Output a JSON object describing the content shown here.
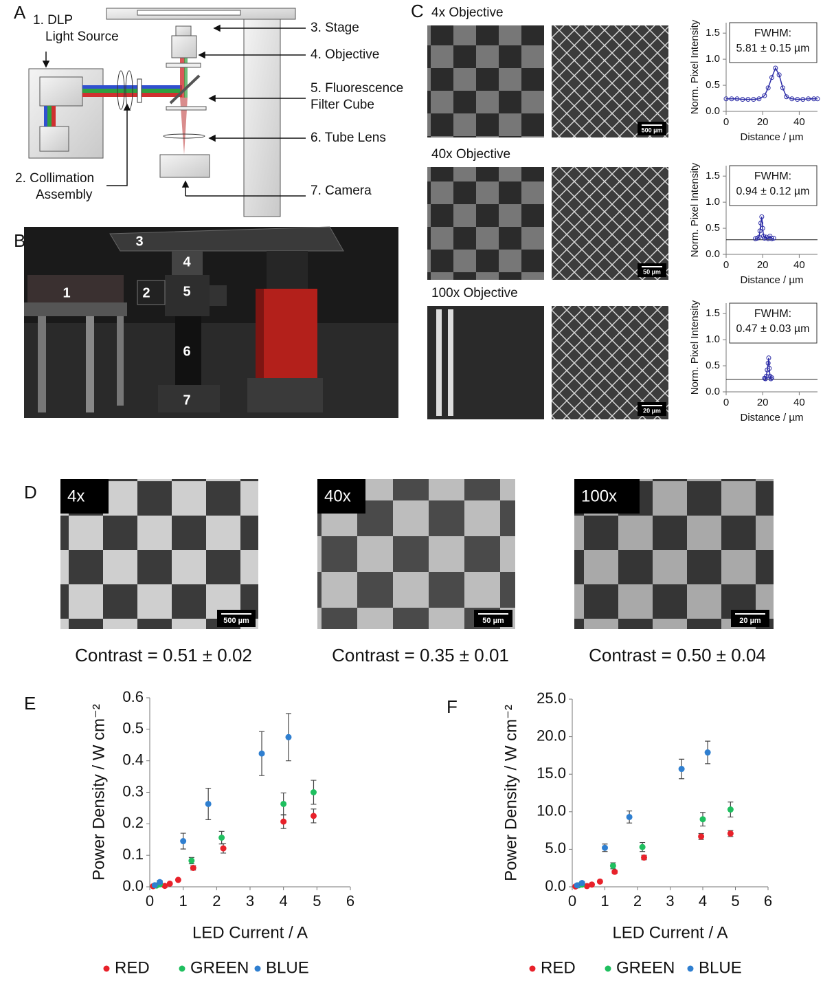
{
  "panel_labels": [
    "A",
    "B",
    "C",
    "D",
    "E",
    "F"
  ],
  "diagram": {
    "labels": [
      [
        "1. DLP",
        "Light Source"
      ],
      [
        "2. Collimation",
        "Assembly"
      ],
      [
        "3. Stage"
      ],
      [
        "4. Objective"
      ],
      [
        "5. Fluorescence",
        "Filter Cube"
      ],
      [
        "6. Tube Lens"
      ],
      [
        "7. Camera"
      ]
    ]
  },
  "photo": {
    "labels": [
      "1",
      "2",
      "3",
      "4",
      "5",
      "6",
      "7"
    ]
  },
  "microscopy": {
    "rows": [
      {
        "title": "4x Objective",
        "scale": "500 µm"
      },
      {
        "title": "40x Objective",
        "scale": "50 µm"
      },
      {
        "title": "100x Objective",
        "scale": "20 µm"
      }
    ]
  },
  "contrast": {
    "images": [
      {
        "label": "4x",
        "scale": "500 µm",
        "text": "Contrast = 0.51 ± 0.02"
      },
      {
        "label": "40x",
        "scale": "50 µm",
        "text": "Contrast = 0.35 ± 0.01"
      },
      {
        "label": "100x",
        "scale": "20 µm",
        "text": "Contrast = 0.50 ± 0.04"
      }
    ]
  },
  "chart_data": [
    {
      "type": "line",
      "annotation": [
        "FWHM:",
        "5.81 ± 0.15 µm"
      ],
      "xlabel": "Distance / µm",
      "ylabel": "Norm. Pixel Intensity",
      "color": "#2b2ba6",
      "x": [
        0,
        3,
        6,
        9,
        12,
        15,
        18,
        21,
        23,
        25,
        27,
        29,
        31,
        33,
        36,
        39,
        42,
        45,
        48,
        50
      ],
      "values": [
        0.24,
        0.24,
        0.24,
        0.23,
        0.23,
        0.23,
        0.24,
        0.3,
        0.45,
        0.65,
        0.83,
        0.7,
        0.45,
        0.28,
        0.24,
        0.23,
        0.23,
        0.24,
        0.24,
        0.24
      ],
      "xlim": [
        0,
        50
      ],
      "ylim": [
        0,
        1.7
      ],
      "xticks": [
        0,
        20,
        40
      ],
      "yticks": [
        {
          "value": 0,
          "label": "0.0"
        },
        0.5,
        {
          "value": 1,
          "label": "1.0"
        },
        1.5
      ]
    },
    {
      "type": "line",
      "annotation": [
        "FWHM:",
        "0.94 ± 0.12 µm"
      ],
      "xlabel": "Distance / µm",
      "ylabel": "Norm. Pixel Intensity",
      "color": "#2b2ba6",
      "x": [
        16,
        17,
        18,
        18.5,
        19,
        19.5,
        20,
        20.5,
        21,
        22,
        23,
        24,
        25,
        26
      ],
      "values": [
        0.3,
        0.31,
        0.33,
        0.45,
        0.6,
        0.72,
        0.5,
        0.35,
        0.31,
        0.33,
        0.3,
        0.35,
        0.3,
        0.31
      ],
      "baseline": 0.28,
      "xlim": [
        0,
        50
      ],
      "ylim": [
        0,
        1.7
      ],
      "xticks": [
        0,
        20,
        40
      ],
      "yticks": [
        {
          "value": 0,
          "label": "0.0"
        },
        0.5,
        {
          "value": 1,
          "label": "1.0"
        },
        1.5
      ]
    },
    {
      "type": "line",
      "annotation": [
        "FWHM:",
        "0.47 ± 0.03 µm"
      ],
      "xlabel": "Distance / µm",
      "ylabel": "Norm. Pixel Intensity",
      "color": "#2b2ba6",
      "x": [
        21,
        21.5,
        22,
        22.5,
        23,
        23.3,
        23.6,
        24,
        24.5,
        25
      ],
      "values": [
        0.26,
        0.25,
        0.3,
        0.42,
        0.55,
        0.65,
        0.45,
        0.3,
        0.25,
        0.27
      ],
      "baseline": 0.24,
      "xlim": [
        0,
        50
      ],
      "ylim": [
        0,
        1.7
      ],
      "xticks": [
        0,
        20,
        40
      ],
      "yticks": [
        {
          "value": 0,
          "label": "0.0"
        },
        0.5,
        {
          "value": 1,
          "label": "1.0"
        },
        1.5
      ]
    },
    {
      "type": "scatter",
      "xlabel": "LED Current / A",
      "ylabel": "Power Density / W cm⁻²",
      "xlim": [
        0,
        6
      ],
      "ylim": [
        0,
        0.6
      ],
      "xticks": [
        0,
        1,
        2,
        3,
        4,
        5,
        6
      ],
      "yticks": [
        {
          "value": 0,
          "label": "0.0"
        },
        0.1,
        0.2,
        0.3,
        0.4,
        0.5,
        0.6
      ],
      "series": [
        {
          "name": "RED",
          "color": "#e8212a",
          "x": [
            0.1,
            0.45,
            0.6,
            0.85,
            1.3,
            2.2,
            4.0,
            4.9
          ],
          "values": [
            0.002,
            0.003,
            0.01,
            0.022,
            0.06,
            0.122,
            0.207,
            0.225
          ],
          "errors": [
            0,
            0,
            0,
            0,
            0.007,
            0.015,
            0.022,
            0.022
          ]
        },
        {
          "name": "GREEN",
          "color": "#1fbf5f",
          "x": [
            0.2,
            0.3,
            1.25,
            2.15,
            4.0,
            4.9
          ],
          "values": [
            0.004,
            0.008,
            0.083,
            0.156,
            0.263,
            0.3
          ],
          "errors": [
            0,
            0,
            0.01,
            0.02,
            0.035,
            0.038
          ]
        },
        {
          "name": "BLUE",
          "color": "#2f7fd0",
          "x": [
            0.15,
            0.3,
            1.0,
            1.75,
            3.35,
            4.15
          ],
          "values": [
            0.005,
            0.015,
            0.145,
            0.263,
            0.423,
            0.475
          ],
          "errors": [
            0,
            0.005,
            0.025,
            0.05,
            0.07,
            0.075
          ]
        }
      ]
    },
    {
      "type": "scatter",
      "xlabel": "LED Current / A",
      "ylabel": "Power Density / W cm⁻²",
      "xlim": [
        0,
        6
      ],
      "ylim": [
        0,
        25
      ],
      "xticks": [
        0,
        1,
        2,
        3,
        4,
        5,
        6
      ],
      "yticks": [
        {
          "value": 0,
          "label": "0.0"
        },
        {
          "value": 5,
          "label": "5.0"
        },
        {
          "value": 10,
          "label": "10.0"
        },
        {
          "value": 15,
          "label": "15.0"
        },
        {
          "value": 20,
          "label": "20.0"
        },
        {
          "value": 25,
          "label": "25.0"
        }
      ],
      "series": [
        {
          "name": "RED",
          "color": "#e8212a",
          "x": [
            0.1,
            0.45,
            0.6,
            0.85,
            1.3,
            2.2,
            3.95,
            4.85
          ],
          "values": [
            0.05,
            0.1,
            0.3,
            0.7,
            2.0,
            3.9,
            6.7,
            7.1
          ],
          "errors": [
            0,
            0,
            0,
            0,
            0.2,
            0.3,
            0.4,
            0.4
          ]
        },
        {
          "name": "GREEN",
          "color": "#1fbf5f",
          "x": [
            0.2,
            0.3,
            1.25,
            2.15,
            4.0,
            4.85
          ],
          "values": [
            0.2,
            0.3,
            2.8,
            5.3,
            9.0,
            10.3
          ],
          "errors": [
            0,
            0,
            0.4,
            0.6,
            0.9,
            1.0
          ]
        },
        {
          "name": "BLUE",
          "color": "#2f7fd0",
          "x": [
            0.15,
            0.3,
            1.0,
            1.75,
            3.35,
            4.15
          ],
          "values": [
            0.2,
            0.5,
            5.2,
            9.3,
            15.7,
            17.9
          ],
          "errors": [
            0.1,
            0.2,
            0.5,
            0.8,
            1.3,
            1.5
          ]
        }
      ]
    }
  ]
}
